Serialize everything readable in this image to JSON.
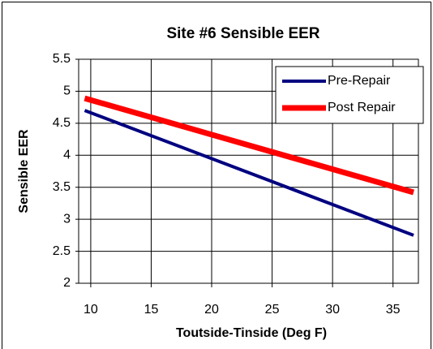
{
  "chart_data": {
    "type": "line",
    "title": "Site #6 Sensible EER",
    "x_label": "Toutside-Tinside (Deg F)",
    "y_label": "Sensible EER",
    "series": [
      {
        "name": "Pre-Repair",
        "color": "#000080",
        "x": [
          9.5,
          36.7
        ],
        "values": [
          4.7,
          2.75
        ]
      },
      {
        "name": "Post Repair",
        "color": "#ff0000",
        "x": [
          9.5,
          36.7
        ],
        "values": [
          4.89,
          3.42
        ]
      }
    ],
    "xlim": [
      9,
      37.1
    ],
    "xticks": [
      10,
      15,
      20,
      25,
      30,
      35
    ],
    "ylim": [
      2,
      5.5
    ],
    "yticks": [
      2,
      2.5,
      3,
      3.5,
      4,
      4.5,
      5,
      5.5
    ],
    "grid": true,
    "legend": "top-right"
  }
}
